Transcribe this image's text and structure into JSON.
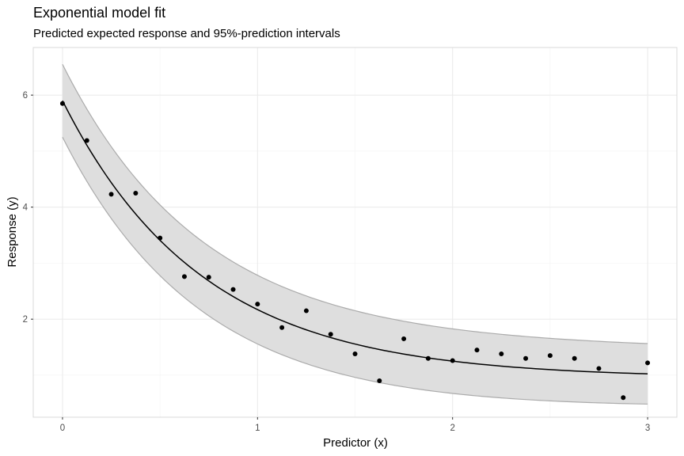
{
  "chart_data": {
    "type": "line",
    "title": "Exponential model fit",
    "subtitle": "Predicted expected response and 95%-prediction intervals",
    "xlabel": "Predictor (x)",
    "ylabel": "Response (y)",
    "xlim": [
      -0.15,
      3.15
    ],
    "ylim": [
      0.25,
      6.85
    ],
    "x_ticks": [
      0,
      1,
      2,
      3
    ],
    "x_tick_labels": [
      "0",
      "1",
      "2",
      "3"
    ],
    "y_ticks": [
      2,
      4,
      6
    ],
    "y_tick_labels": [
      "2",
      "4",
      "6"
    ],
    "grid": true,
    "legend": "none",
    "colors": {
      "points": "#000000",
      "fit": "#000000",
      "band": "#dedede",
      "band_edge": "#ababab"
    },
    "fit_model": {
      "form": "exponential",
      "asymptote": 0.95,
      "amplitude": 4.95,
      "rate": 1.4
    },
    "prediction_interval_halfwidth": [
      {
        "x": 0,
        "w": 0.65
      },
      {
        "x": 3,
        "w": 0.54
      }
    ],
    "observations": {
      "x": [
        0,
        0.125,
        0.25,
        0.375,
        0.5,
        0.625,
        0.75,
        0.875,
        1.0,
        1.125,
        1.25,
        1.375,
        1.5,
        1.625,
        1.75,
        1.875,
        2.0,
        2.125,
        2.25,
        2.375,
        2.5,
        2.625,
        2.75,
        2.875,
        3.0
      ],
      "y": [
        5.85,
        5.19,
        4.23,
        4.25,
        3.45,
        2.76,
        2.75,
        2.53,
        2.27,
        1.85,
        2.15,
        1.73,
        1.38,
        0.9,
        1.65,
        1.3,
        1.26,
        1.45,
        1.38,
        1.3,
        1.35,
        1.3,
        1.12,
        0.6,
        1.22
      ]
    }
  }
}
